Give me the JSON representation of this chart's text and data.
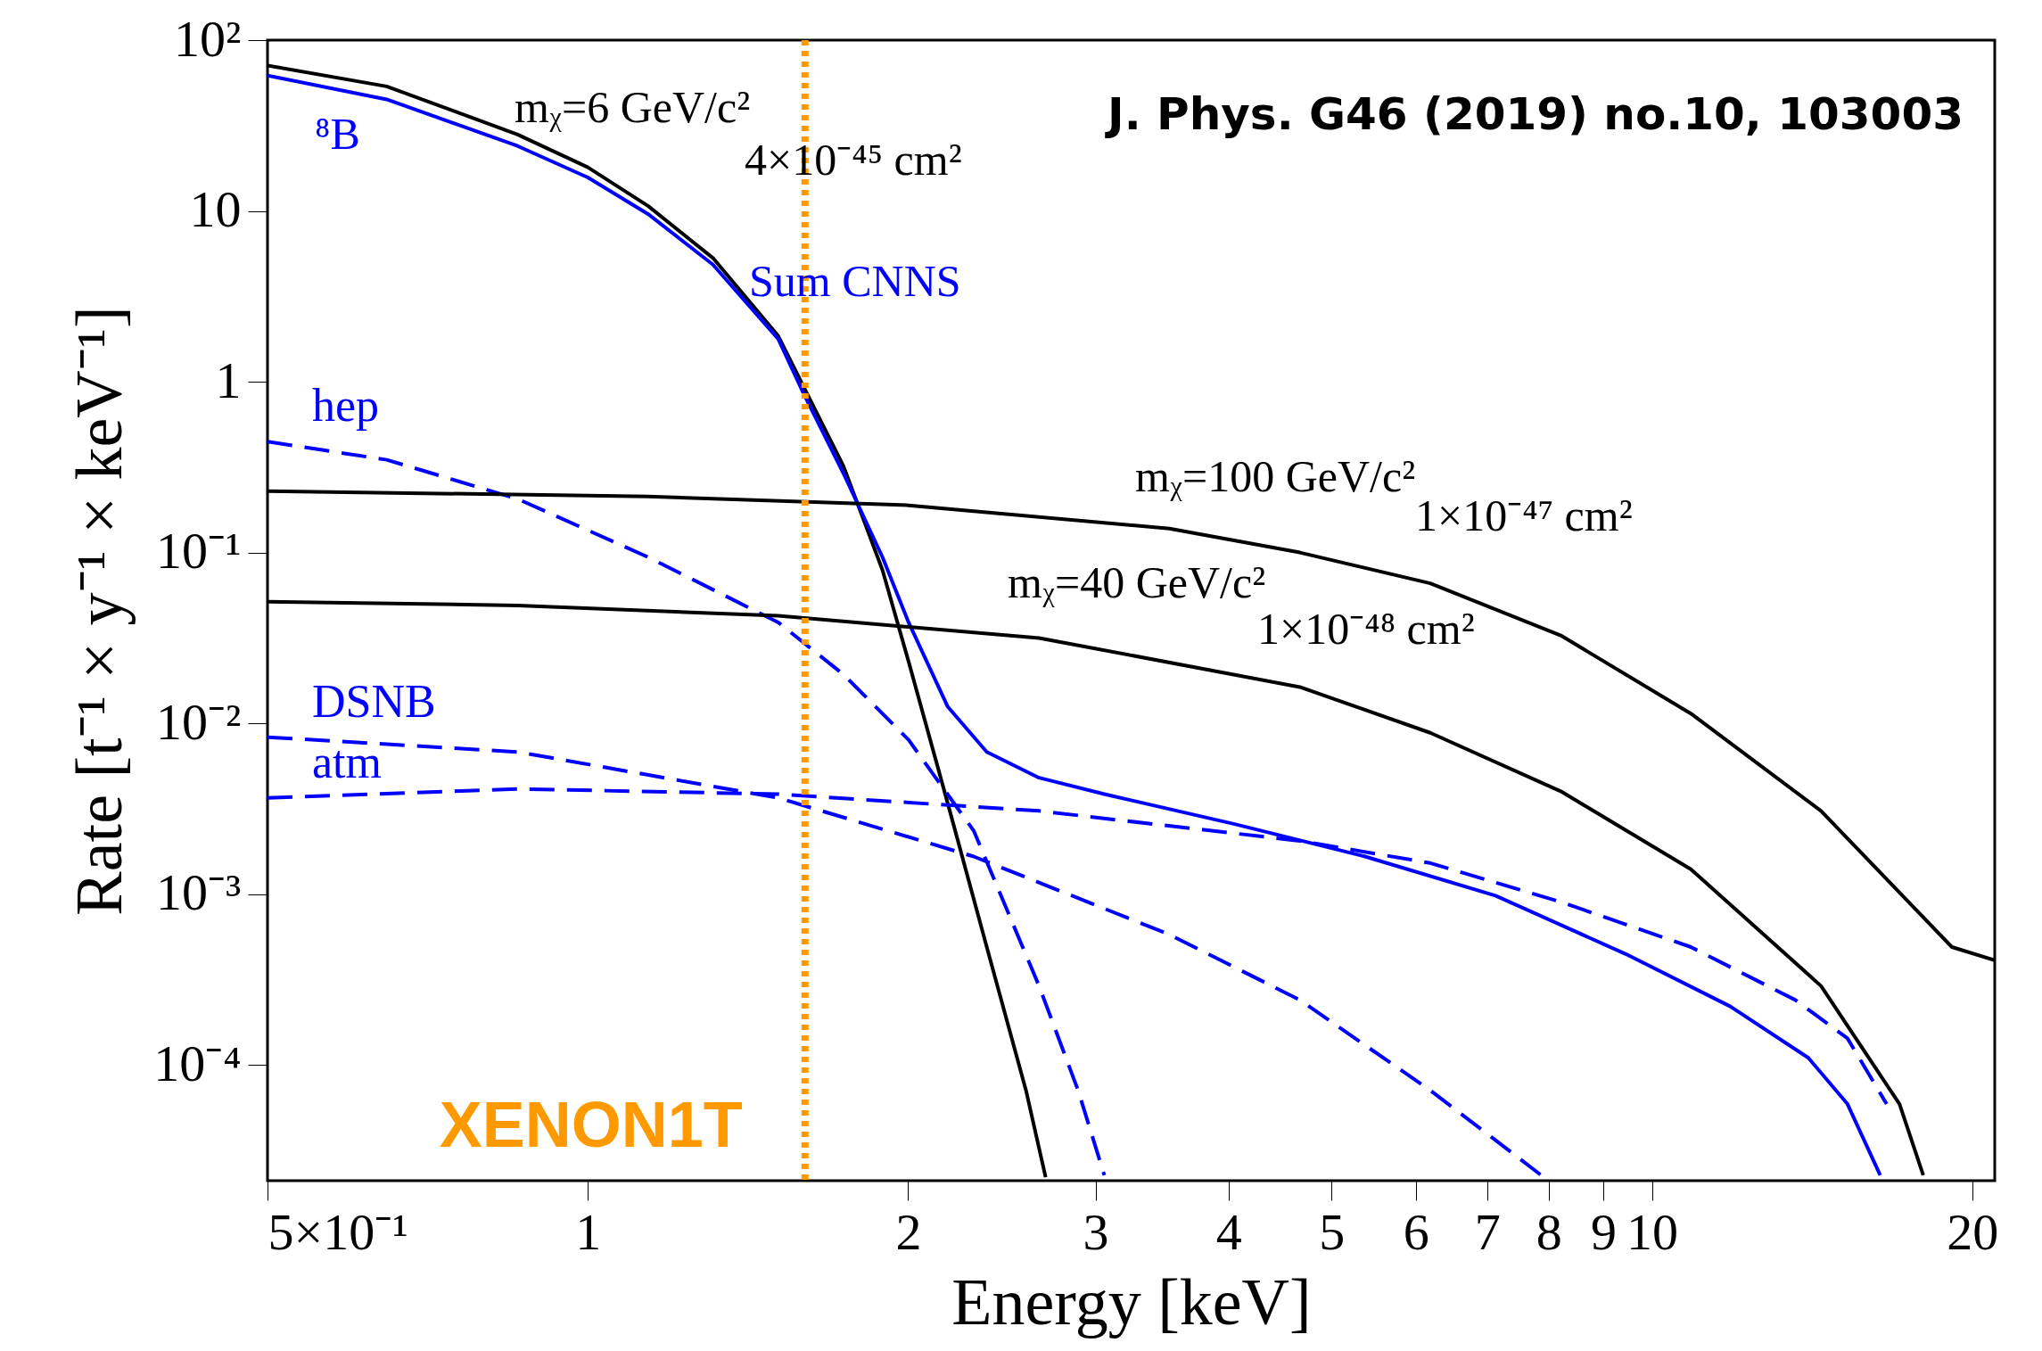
{
  "chart_data": {
    "type": "line",
    "xlabel": "Energy [keV]",
    "ylabel": "Rate [t⁻¹ × y⁻¹ × keV⁻¹]",
    "log": "xy",
    "grid": false,
    "xlim": [
      0.5,
      21
    ],
    "ylim": [
      2.1e-05,
      100
    ],
    "xticks": [
      {
        "value": 0.5,
        "label": "5×10⁻¹"
      },
      1,
      2,
      3,
      4,
      5,
      6,
      7,
      8,
      9,
      10,
      20
    ],
    "yticks": [
      {
        "value": 0.0001,
        "label": "10⁻⁴"
      },
      {
        "value": 0.001,
        "label": "10⁻³"
      },
      {
        "value": 0.01,
        "label": "10⁻²"
      },
      {
        "value": 0.1,
        "label": "10⁻¹"
      },
      1,
      10,
      {
        "value": 100,
        "label": "10²"
      }
    ],
    "series": [
      {
        "color": "#000000",
        "line_style": "solid",
        "x": [
          0.5,
          0.647,
          0.859,
          1,
          1.139,
          1.311,
          1.51,
          1.597,
          1.739,
          1.892,
          2.002,
          2.179,
          2.371,
          2.581,
          2.693
        ],
        "values": [
          71,
          53.6,
          28,
          18,
          10.7,
          5.3,
          1.85,
          0.92,
          0.32,
          0.079,
          0.023,
          0.0034,
          0.00049,
          7.1e-05,
          2.2e-05
        ]
      },
      {
        "color": "#0000ff",
        "line_style": "solid",
        "x": [
          0.5,
          0.647,
          0.859,
          1,
          1.139,
          1.311,
          1.51,
          1.597,
          1.739,
          1.892,
          2.002,
          2.179,
          2.371,
          2.655,
          3.058,
          4.054,
          5.376,
          7.128,
          9.45,
          11.85,
          14.03,
          15.27,
          16.39
        ],
        "values": [
          62,
          45,
          24,
          15.7,
          9.6,
          4.85,
          1.78,
          0.84,
          0.29,
          0.094,
          0.039,
          0.0125,
          0.0068,
          0.0048,
          0.00385,
          0.00257,
          0.00166,
          0.00098,
          0.000446,
          0.00022,
          0.00011,
          5.9e-05,
          2.26e-05
        ]
      },
      {
        "name": "hep",
        "color": "#0000ff",
        "line_style": "dashed",
        "x": [
          0.5,
          0.647,
          0.859,
          1.139,
          1.51,
          1.739,
          2.002,
          2.305,
          2.655,
          2.889,
          3.058
        ],
        "values": [
          0.446,
          0.349,
          0.206,
          0.094,
          0.039,
          0.0193,
          0.008,
          0.00235,
          0.00029,
          7.1e-05,
          2.26e-05
        ]
      },
      {
        "name": "DSNB",
        "color": "#0000ff",
        "line_style": "dashed",
        "x": [
          0.5,
          0.859,
          1.51,
          2.305,
          3.52,
          4.668,
          6.19,
          7.87
        ],
        "values": [
          0.0083,
          0.0068,
          0.00366,
          0.00166,
          0.00058,
          0.00024,
          7.1e-05,
          2.26e-05
        ]
      },
      {
        "name": "atm",
        "color": "#0000ff",
        "line_style": "dashed",
        "x": [
          0.5,
          0.859,
          1.51,
          2.655,
          4.668,
          6.19,
          8.21,
          10.88,
          13.64,
          15.27,
          16.62
        ],
        "values": [
          0.00366,
          0.00413,
          0.00385,
          0.00307,
          0.00205,
          0.00152,
          0.0009,
          0.00049,
          0.00024,
          0.000143,
          5.9e-05
        ]
      },
      {
        "color": "#000000",
        "line_style": "solid",
        "x": [
          0.5,
          1.139,
          2.002,
          3.52,
          4.668,
          6.19,
          8.21,
          10.88,
          14.42,
          19.14,
          21
        ],
        "values": [
          0.229,
          0.213,
          0.189,
          0.138,
          0.1,
          0.066,
          0.0327,
          0.0114,
          0.00307,
          0.00049,
          0.00041
        ]
      },
      {
        "color": "#000000",
        "line_style": "solid",
        "x": [
          0.5,
          0.859,
          1.51,
          2.655,
          4.668,
          6.19,
          8.21,
          10.88,
          14.42,
          17.09,
          17.99
        ],
        "values": [
          0.0516,
          0.049,
          0.0426,
          0.0316,
          0.0163,
          0.0088,
          0.004,
          0.0014,
          0.00029,
          5.9e-05,
          2.26e-05
        ]
      }
    ],
    "ref_lines": [
      {
        "axis": "x",
        "value": 1.6,
        "label": "XENON1T",
        "color": "#ff9900",
        "line_style": "dotted"
      }
    ],
    "annotations": [
      "J. Phys. G46 (2019) no.10, 103003",
      "mᵪ=6 GeV/c²",
      "4×10⁻⁴⁵ cm²",
      "Sum CNNS",
      "⁸B",
      "mᵪ=100 GeV/c²",
      "1×10⁻⁴⁷ cm²",
      "mᵪ=40 GeV/c²",
      "1×10⁻⁴⁸ cm²"
    ]
  }
}
